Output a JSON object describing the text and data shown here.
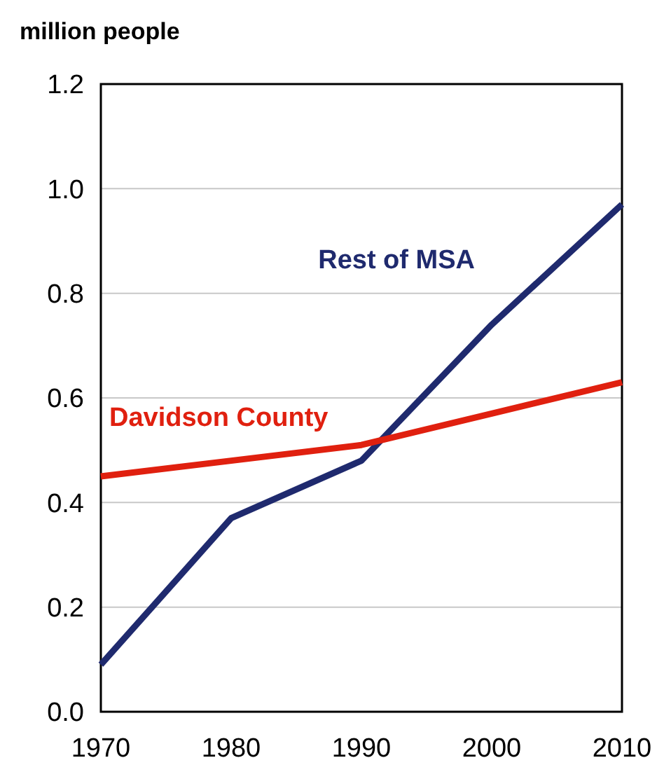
{
  "chart_data": {
    "type": "line",
    "ylabel": "million people",
    "x": [
      1970,
      1980,
      1990,
      2000,
      2010
    ],
    "xlim": [
      1970,
      2010
    ],
    "xticks": [
      1970,
      1980,
      1990,
      2000,
      2010
    ],
    "ylim": [
      0,
      1.2
    ],
    "yticks": [
      {
        "value": 0,
        "label": "0.0"
      },
      0.2,
      0.4,
      0.6,
      0.8,
      {
        "value": 1,
        "label": "1.0"
      },
      1.2
    ],
    "grid": "y",
    "legend": false,
    "marker": "none",
    "line_style": "solid",
    "series": [
      {
        "name": "Rest of MSA",
        "color": "#1f2a6e",
        "values": [
          0.09,
          0.37,
          0.48,
          0.74,
          0.97
        ]
      },
      {
        "name": "Davidson County",
        "color": "#e0200f",
        "values": [
          0.45,
          0.48,
          0.51,
          0.57,
          0.63
        ]
      }
    ]
  }
}
